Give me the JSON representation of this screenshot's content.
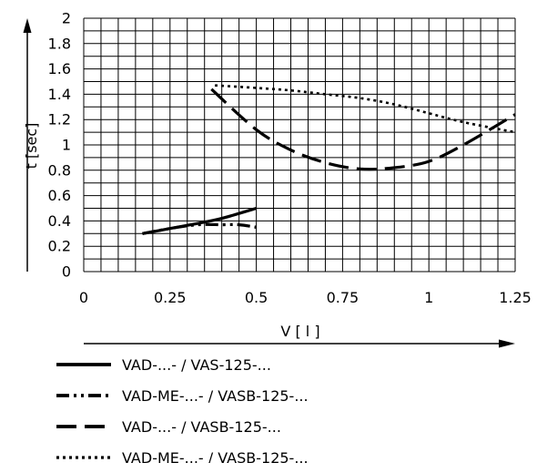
{
  "chart_data": {
    "type": "line",
    "title": "",
    "xlabel": "V [ l ]",
    "ylabel": "t [sec]",
    "xlim": [
      0,
      1.25
    ],
    "ylim": [
      0,
      2
    ],
    "x_ticks": [
      0,
      0.25,
      0.5,
      0.75,
      1,
      1.25
    ],
    "x_tick_labels": [
      "0",
      "0.25",
      "0.5",
      "0.75",
      "1",
      "1.25"
    ],
    "y_ticks": [
      0,
      0.2,
      0.4,
      0.6,
      0.8,
      1,
      1.2,
      1.4,
      1.6,
      1.8,
      2
    ],
    "y_tick_labels": [
      "0",
      "0.2",
      "0.4",
      "0.6",
      "0.8",
      "1",
      "1.2",
      "1.4",
      "1.6",
      "1.8",
      "2"
    ],
    "grid": true,
    "legend_position": "bottom",
    "series": [
      {
        "name": "VAD-...- / VAS-125-...",
        "style": "solid",
        "x": [
          0.17,
          0.25,
          0.33,
          0.4,
          0.5
        ],
        "y": [
          0.3,
          0.34,
          0.38,
          0.42,
          0.5
        ]
      },
      {
        "name": "VAD-ME-...- / VASB-125-...",
        "style": "dash-dot-dot",
        "x": [
          0.17,
          0.25,
          0.33,
          0.4,
          0.45,
          0.5
        ],
        "y": [
          0.3,
          0.34,
          0.37,
          0.37,
          0.37,
          0.35
        ]
      },
      {
        "name": "VAD-...- / VASB-125-...",
        "style": "long-dash",
        "x": [
          0.37,
          0.5,
          0.6,
          0.7,
          0.8,
          0.9,
          1.0,
          1.1,
          1.25
        ],
        "y": [
          1.44,
          1.12,
          0.96,
          0.86,
          0.81,
          0.82,
          0.87,
          1.0,
          1.24
        ]
      },
      {
        "name": "VAD-ME-...- / VASB-125-...",
        "style": "dotted",
        "x": [
          0.38,
          0.5,
          0.6,
          0.7,
          0.8,
          0.9,
          1.0,
          1.1,
          1.25
        ],
        "y": [
          1.47,
          1.45,
          1.43,
          1.4,
          1.37,
          1.32,
          1.25,
          1.18,
          1.1
        ]
      }
    ]
  }
}
